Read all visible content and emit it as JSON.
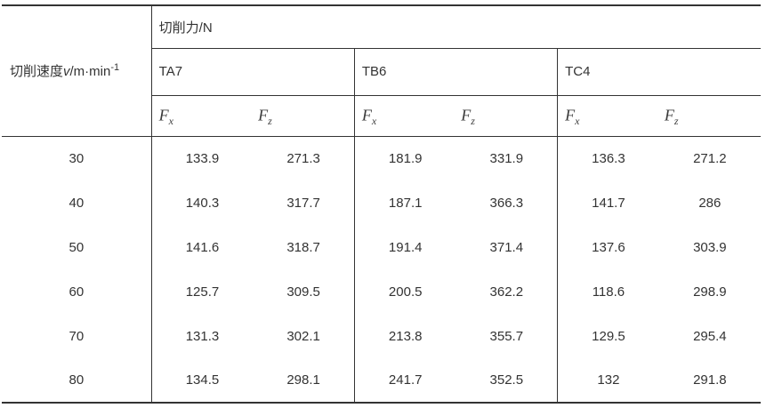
{
  "chart_data": {
    "type": "table",
    "title": "切削力/N",
    "row_header": "切削速度v/m·min⁻¹",
    "speeds": [
      30,
      40,
      50,
      60,
      70,
      80
    ],
    "series": [
      {
        "name": "TA7 Fx",
        "values": [
          133.9,
          140.3,
          141.6,
          125.7,
          131.3,
          134.5
        ]
      },
      {
        "name": "TA7 Fz",
        "values": [
          271.3,
          317.7,
          318.7,
          309.5,
          302.1,
          298.1
        ]
      },
      {
        "name": "TB6 Fx",
        "values": [
          181.9,
          187.1,
          191.4,
          200.5,
          213.8,
          241.7
        ]
      },
      {
        "name": "TB6 Fz",
        "values": [
          331.9,
          366.3,
          371.4,
          362.2,
          355.7,
          352.5
        ]
      },
      {
        "name": "TC4 Fx",
        "values": [
          136.3,
          141.7,
          137.6,
          118.6,
          129.5,
          132
        ]
      },
      {
        "name": "TC4 Fz",
        "values": [
          271.2,
          286,
          303.9,
          298.9,
          295.4,
          291.8
        ]
      }
    ]
  },
  "table": {
    "border_color": "#333333",
    "text_color": "#333333",
    "speed_header": {
      "prefix": "切削速度",
      "variable": "v",
      "unit": "/m·min",
      "superscript": "-1"
    },
    "force_header": "切削力/N",
    "materials": [
      "TA7",
      "TB6",
      "TC4"
    ],
    "component_symbol": "F",
    "sub_x": "x",
    "sub_z": "z",
    "rows": [
      {
        "speed": "30",
        "values": [
          "133.9",
          "271.3",
          "181.9",
          "331.9",
          "136.3",
          "271.2"
        ]
      },
      {
        "speed": "40",
        "values": [
          "140.3",
          "317.7",
          "187.1",
          "366.3",
          "141.7",
          "286"
        ]
      },
      {
        "speed": "50",
        "values": [
          "141.6",
          "318.7",
          "191.4",
          "371.4",
          "137.6",
          "303.9"
        ]
      },
      {
        "speed": "60",
        "values": [
          "125.7",
          "309.5",
          "200.5",
          "362.2",
          "118.6",
          "298.9"
        ]
      },
      {
        "speed": "70",
        "values": [
          "131.3",
          "302.1",
          "213.8",
          "355.7",
          "129.5",
          "295.4"
        ]
      },
      {
        "speed": "80",
        "values": [
          "134.5",
          "298.1",
          "241.7",
          "352.5",
          "132",
          "291.8"
        ]
      }
    ]
  }
}
